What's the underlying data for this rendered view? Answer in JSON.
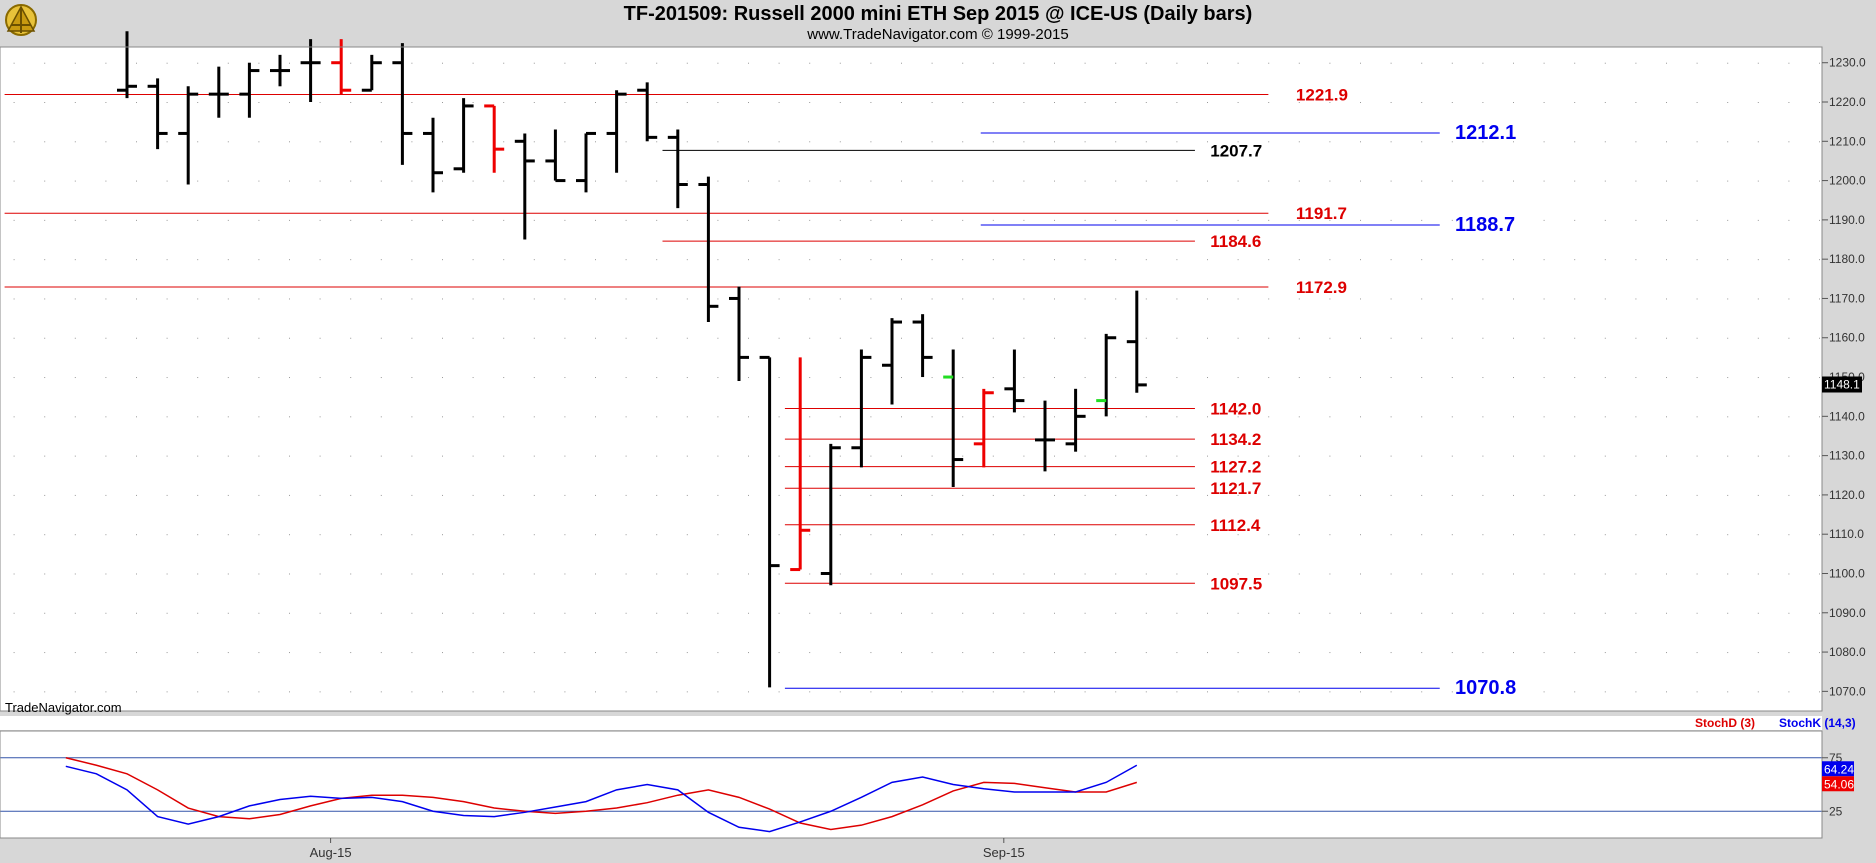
{
  "header": {
    "title": "TF-201509:  Russell 2000 mini ETH Sep 2015 @ ICE-US  (Daily bars)",
    "subtitle": "www.TradeNavigator.com © 1999-2015"
  },
  "watermark": "TradeNavigator.com",
  "colors": {
    "background": "#ffffff",
    "frame": "#d7d7d7",
    "up_bar": "#000000",
    "down_bar": "#ee0000",
    "green_tick": "#22dd22",
    "red_level": "#dd0000",
    "blue_level": "#0000ee",
    "black_level": "#000000",
    "stochK": "#0000ee",
    "stochD": "#ee0000"
  },
  "chart_data": [
    {
      "type": "ohlc",
      "title": "TF-201509:  Russell 2000 mini ETH Sep 2015 @ ICE-US  (Daily bars)",
      "ylim": [
        1065,
        1234
      ],
      "yticks": [
        "1070.0",
        "1080.0",
        "1090.0",
        "1100.0",
        "1110.0",
        "1120.0",
        "1130.0",
        "1140.0",
        "1150.0",
        "1160.0",
        "1170.0",
        "1180.0",
        "1190.0",
        "1200.0",
        "1210.0",
        "1220.0",
        "1230.0"
      ],
      "x_labels": [
        {
          "label": "Aug-15",
          "bar": 6
        },
        {
          "label": "Sep-15",
          "bar": 28
        }
      ],
      "last_price": "1148.1",
      "bars": [
        {
          "o": 1223,
          "h": 1238,
          "l": 1221,
          "c": 1224,
          "color": "black"
        },
        {
          "o": 1224,
          "h": 1226,
          "l": 1208,
          "c": 1212,
          "color": "black"
        },
        {
          "o": 1212,
          "h": 1224,
          "l": 1199,
          "c": 1222,
          "color": "black"
        },
        {
          "o": 1222,
          "h": 1229,
          "l": 1216,
          "c": 1222,
          "color": "black"
        },
        {
          "o": 1222,
          "h": 1230,
          "l": 1216,
          "c": 1228,
          "color": "black"
        },
        {
          "o": 1228,
          "h": 1232,
          "l": 1224,
          "c": 1228,
          "color": "black"
        },
        {
          "o": 1230,
          "h": 1236,
          "l": 1220,
          "c": 1230,
          "color": "black"
        },
        {
          "o": 1230,
          "h": 1236,
          "l": 1222,
          "c": 1223,
          "color": "red"
        },
        {
          "o": 1223,
          "h": 1232,
          "l": 1223,
          "c": 1230,
          "color": "black"
        },
        {
          "o": 1230,
          "h": 1235,
          "l": 1204,
          "c": 1212,
          "color": "black"
        },
        {
          "o": 1212,
          "h": 1216,
          "l": 1197,
          "c": 1202,
          "color": "black"
        },
        {
          "o": 1203,
          "h": 1221,
          "l": 1202,
          "c": 1219,
          "color": "black"
        },
        {
          "o": 1219,
          "h": 1219,
          "l": 1202,
          "c": 1208,
          "color": "red"
        },
        {
          "o": 1210,
          "h": 1212,
          "l": 1185,
          "c": 1205,
          "color": "black"
        },
        {
          "o": 1205,
          "h": 1213,
          "l": 1200,
          "c": 1200,
          "color": "black"
        },
        {
          "o": 1200,
          "h": 1212,
          "l": 1197,
          "c": 1212,
          "color": "black"
        },
        {
          "o": 1212,
          "h": 1223,
          "l": 1202,
          "c": 1222,
          "color": "black"
        },
        {
          "o": 1223,
          "h": 1225,
          "l": 1210,
          "c": 1211,
          "color": "black"
        },
        {
          "o": 1211,
          "h": 1213,
          "l": 1193,
          "c": 1199,
          "color": "black"
        },
        {
          "o": 1199,
          "h": 1201,
          "l": 1164,
          "c": 1168,
          "color": "black"
        },
        {
          "o": 1170,
          "h": 1173,
          "l": 1149,
          "c": 1155,
          "color": "black"
        },
        {
          "o": 1155,
          "h": 1155,
          "l": 1071,
          "c": 1102,
          "color": "black"
        },
        {
          "o": 1101,
          "h": 1155,
          "l": 1101,
          "c": 1111,
          "color": "red"
        },
        {
          "o": 1100,
          "h": 1133,
          "l": 1097,
          "c": 1132,
          "color": "black"
        },
        {
          "o": 1132,
          "h": 1157,
          "l": 1127,
          "c": 1155,
          "color": "black"
        },
        {
          "o": 1153,
          "h": 1165,
          "l": 1143,
          "c": 1164,
          "color": "black"
        },
        {
          "o": 1164,
          "h": 1166,
          "l": 1150,
          "c": 1155,
          "color": "black"
        },
        {
          "o": 1150,
          "h": 1157,
          "l": 1122,
          "c": 1129,
          "color": "black",
          "open_color": "green"
        },
        {
          "o": 1133,
          "h": 1147,
          "l": 1127,
          "c": 1146,
          "color": "red"
        },
        {
          "o": 1147,
          "h": 1157,
          "l": 1141,
          "c": 1144,
          "color": "black"
        },
        {
          "o": 1134,
          "h": 1144,
          "l": 1126,
          "c": 1134,
          "color": "black"
        },
        {
          "o": 1133,
          "h": 1147,
          "l": 1131,
          "c": 1140,
          "color": "black"
        },
        {
          "o": 1144,
          "h": 1161,
          "l": 1140,
          "c": 1160,
          "color": "black",
          "open_color": "green"
        },
        {
          "o": 1159,
          "h": 1172,
          "l": 1146,
          "c": 1148,
          "color": "black"
        }
      ],
      "levels": [
        {
          "value": 1221.9,
          "label": "1221.9",
          "color": "red",
          "from_bar": -4,
          "to_bar": 37.3,
          "label_bar": 38.2
        },
        {
          "value": 1212.1,
          "label": "1212.1",
          "color": "blue",
          "from_bar": 27.9,
          "to_bar": 42.9,
          "label_bar": 43.4
        },
        {
          "value": 1207.7,
          "label": "1207.7",
          "color": "black",
          "from_bar": 17.5,
          "to_bar": 34.9,
          "label_bar": 35.4
        },
        {
          "value": 1191.7,
          "label": "1191.7",
          "color": "red",
          "from_bar": -4,
          "to_bar": 37.3,
          "label_bar": 38.2
        },
        {
          "value": 1188.7,
          "label": "1188.7",
          "color": "blue",
          "from_bar": 27.9,
          "to_bar": 42.9,
          "label_bar": 43.4
        },
        {
          "value": 1184.6,
          "label": "1184.6",
          "color": "red",
          "from_bar": 17.5,
          "to_bar": 34.9,
          "label_bar": 35.4
        },
        {
          "value": 1172.9,
          "label": "1172.9",
          "color": "red",
          "from_bar": -4,
          "to_bar": 37.3,
          "label_bar": 38.2
        },
        {
          "value": 1142.0,
          "label": "1142.0",
          "color": "red",
          "from_bar": 21.5,
          "to_bar": 34.9,
          "label_bar": 35.4
        },
        {
          "value": 1134.2,
          "label": "1134.2",
          "color": "red",
          "from_bar": 21.5,
          "to_bar": 34.9,
          "label_bar": 35.4
        },
        {
          "value": 1127.2,
          "label": "1127.2",
          "color": "red",
          "from_bar": 21.5,
          "to_bar": 34.9,
          "label_bar": 35.4
        },
        {
          "value": 1121.7,
          "label": "1121.7",
          "color": "red",
          "from_bar": 21.5,
          "to_bar": 34.9,
          "label_bar": 35.4
        },
        {
          "value": 1112.4,
          "label": "1112.4",
          "color": "red",
          "from_bar": 21.5,
          "to_bar": 34.9,
          "label_bar": 35.4
        },
        {
          "value": 1097.5,
          "label": "1097.5",
          "color": "red",
          "from_bar": 21.5,
          "to_bar": 34.9,
          "label_bar": 35.4
        },
        {
          "value": 1070.8,
          "label": "1070.8",
          "color": "blue",
          "from_bar": 21.5,
          "to_bar": 42.9,
          "label_bar": 43.4
        }
      ]
    },
    {
      "type": "line",
      "legend": [
        {
          "text": "StochD (3)",
          "color": "red"
        },
        {
          "text": "StochK (14,3)",
          "color": "blue"
        }
      ],
      "ylim": [
        0,
        100
      ],
      "yticks": [
        "75",
        "25"
      ],
      "hlines": [
        25,
        75
      ],
      "last_values": {
        "K": "64.24",
        "D": "54.06"
      },
      "series": [
        {
          "name": "StochD (3)",
          "color": "red",
          "x": [
            -2,
            -1,
            0,
            1,
            2,
            3,
            4,
            5,
            6,
            7,
            8,
            9,
            10,
            11,
            12,
            13,
            14,
            15,
            16,
            17,
            18,
            19,
            20,
            21,
            22,
            23,
            24,
            25,
            26,
            27,
            28,
            29,
            30,
            31,
            32,
            33
          ],
          "values": [
            75,
            68,
            60,
            45,
            28,
            20,
            18,
            22,
            30,
            37,
            40,
            40,
            38,
            34,
            28,
            25,
            23,
            25,
            28,
            33,
            40,
            45,
            38,
            27,
            14,
            8,
            12,
            20,
            31,
            44,
            52,
            51,
            47,
            43,
            43,
            52
          ]
        },
        {
          "name": "StochK (14,3)",
          "color": "blue",
          "x": [
            -2,
            -1,
            0,
            1,
            2,
            3,
            4,
            5,
            6,
            7,
            8,
            9,
            10,
            11,
            12,
            13,
            14,
            15,
            16,
            17,
            18,
            19,
            20,
            21,
            22,
            23,
            24,
            25,
            26,
            27,
            28,
            29,
            30,
            31,
            32,
            33
          ],
          "values": [
            67,
            60,
            45,
            20,
            13,
            20,
            30,
            36,
            39,
            37,
            38,
            34,
            25,
            21,
            20,
            24,
            29,
            34,
            45,
            50,
            45,
            24,
            10,
            6,
            15,
            25,
            38,
            52,
            57,
            50,
            46,
            43,
            43,
            43,
            52,
            68
          ]
        }
      ]
    }
  ]
}
